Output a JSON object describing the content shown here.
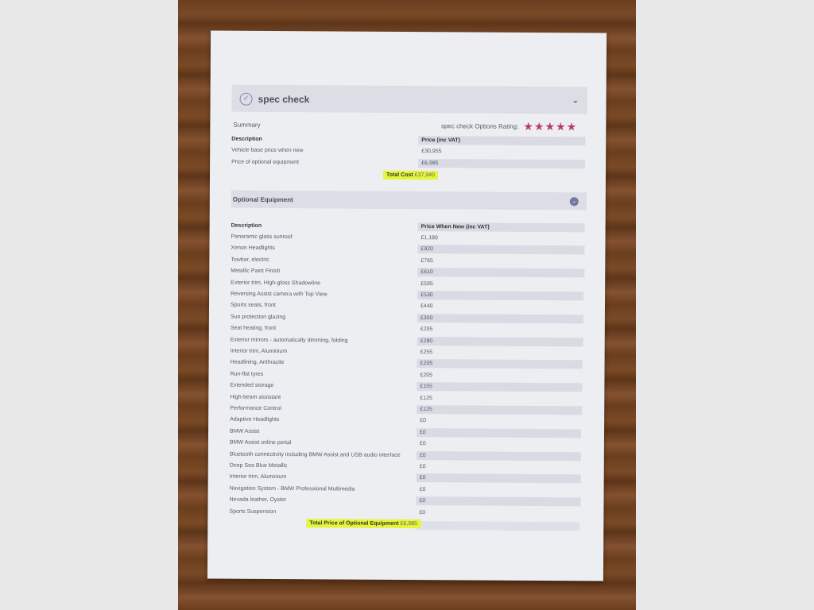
{
  "header": {
    "title": "spec check"
  },
  "summary": {
    "label": "Summary",
    "rating_label": "spec check Options Rating:",
    "rating": 5,
    "rating_max": 5,
    "star_color": "#b83a68",
    "col_description": "Description",
    "col_price": "Price (inc VAT)",
    "rows": [
      {
        "description": "Vehicle base price when new",
        "price": "£30,955"
      },
      {
        "description": "Price of optional equipment",
        "price": "£6,985"
      }
    ],
    "total_label": "Total Cost",
    "total_value": "£37,940"
  },
  "optional": {
    "title": "Optional Equipment",
    "col_description": "Description",
    "col_price": "Price When New (inc VAT)",
    "rows": [
      {
        "description": "Panoramic glass sunroof",
        "price": "£1,180"
      },
      {
        "description": "Xenon Headlights",
        "price": "£920"
      },
      {
        "description": "Towbar, electric",
        "price": "£765"
      },
      {
        "description": "Metallic Paint Finish",
        "price": "£610"
      },
      {
        "description": "Exterior trim, High-gloss Shadowline",
        "price": "£595"
      },
      {
        "description": "Reversing Assist camera with Top View",
        "price": "£530"
      },
      {
        "description": "Sports seats, front",
        "price": "£440"
      },
      {
        "description": "Sun protection glazing",
        "price": "£300"
      },
      {
        "description": "Seat heating, front",
        "price": "£295"
      },
      {
        "description": "Exterior mirrors - automatically dimming, folding",
        "price": "£280"
      },
      {
        "description": "Interior trim, Aluminium",
        "price": "£255"
      },
      {
        "description": "Headlining, Anthracite",
        "price": "£205"
      },
      {
        "description": "Run-flat tyres",
        "price": "£205"
      },
      {
        "description": "Extended storage",
        "price": "£155"
      },
      {
        "description": "High-beam assistant",
        "price": "£125"
      },
      {
        "description": "Performance Control",
        "price": "£125"
      },
      {
        "description": "Adaptive Headlights",
        "price": "£0"
      },
      {
        "description": "BMW Assist",
        "price": "£0"
      },
      {
        "description": "BMW Assist online portal",
        "price": "£0"
      },
      {
        "description": "Bluetooth connectivity including BMW Assist and USB audio interface",
        "price": "£0"
      },
      {
        "description": "Deep Sea Blue Metallic",
        "price": "£0"
      },
      {
        "description": "Interior trim, Aluminium",
        "price": "£0"
      },
      {
        "description": "Navigation System - BMW Professional Multimedia",
        "price": "£0"
      },
      {
        "description": "Nevada leather, Oyster",
        "price": "£0"
      },
      {
        "description": "Sports Suspension",
        "price": "£0"
      }
    ],
    "total_label": "Total Price of Optional Equipment",
    "total_value": "£6,985"
  },
  "highlight_color": "#e4f53a"
}
